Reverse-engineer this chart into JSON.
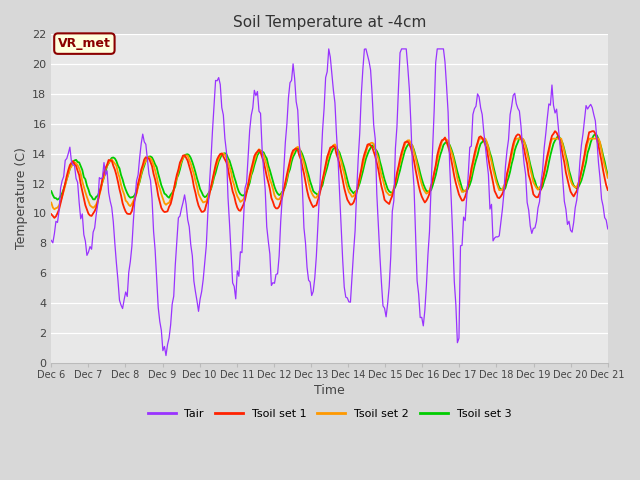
{
  "title": "Soil Temperature at -4cm",
  "xlabel": "Time",
  "ylabel": "Temperature (C)",
  "ylim": [
    0,
    22
  ],
  "n_days": 15,
  "bg_color": "#d8d8d8",
  "plot_bg_color": "#e8e8e8",
  "grid_color": "#ffffff",
  "annotation_text": "VR_met",
  "annotation_bg": "#ffffdd",
  "annotation_border": "#8b0000",
  "annotation_text_color": "#8b0000",
  "color_tair": "#9933ff",
  "color_tsoil1": "#ff2200",
  "color_tsoil2": "#ff9900",
  "color_tsoil3": "#00cc00",
  "legend_labels": [
    "Tair",
    "Tsoil set 1",
    "Tsoil set 2",
    "Tsoil set 3"
  ],
  "xtick_labels": [
    "Dec 6",
    "Dec 7",
    "Dec 8",
    "Dec 9",
    "Dec 10",
    "Dec 11",
    "Dec 12",
    "Dec 13",
    "Dec 14",
    "Dec 15",
    "Dec 16",
    "Dec 17",
    "Dec 18",
    "Dec 19",
    "Dec 20",
    "Dec 21"
  ],
  "ytick_values": [
    0,
    2,
    4,
    6,
    8,
    10,
    12,
    14,
    16,
    18,
    20,
    22
  ]
}
